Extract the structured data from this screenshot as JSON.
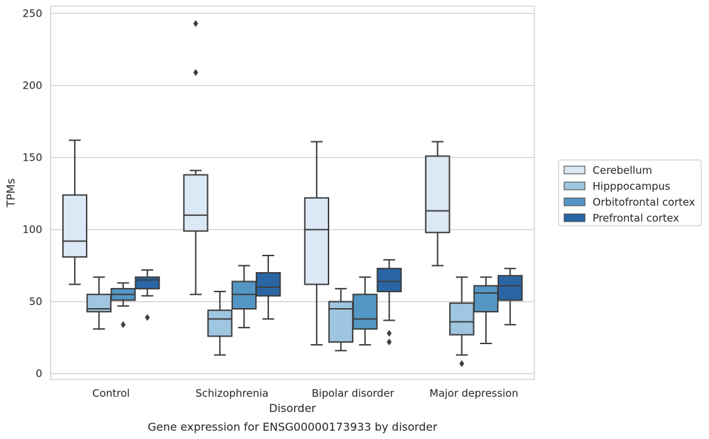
{
  "caption": "Gene expression for ENSG00000173933 by disorder",
  "chart_data": {
    "type": "box",
    "title": "",
    "xlabel": "Disorder",
    "ylabel": "TPMs",
    "ylim": [
      -4,
      255
    ],
    "yticks": [
      0,
      50,
      100,
      150,
      200,
      250
    ],
    "grid": "horizontal",
    "legend_position": "right",
    "categories": [
      "Control",
      "Schizophrenia",
      "Bipolar disorder",
      "Major depression"
    ],
    "series": [
      {
        "name": "Cerebellum",
        "color": "#dbe8f5",
        "boxes": [
          {
            "whisker_low": 62,
            "q1": 81,
            "median": 92,
            "q3": 124,
            "whisker_high": 162,
            "outliers": []
          },
          {
            "whisker_low": 55,
            "q1": 99,
            "median": 110,
            "q3": 138,
            "whisker_high": 141,
            "outliers": [
              209,
              243
            ]
          },
          {
            "whisker_low": 20,
            "q1": 62,
            "median": 100,
            "q3": 122,
            "whisker_high": 161,
            "outliers": []
          },
          {
            "whisker_low": 75,
            "q1": 98,
            "median": 113,
            "q3": 151,
            "whisker_high": 161,
            "outliers": []
          }
        ]
      },
      {
        "name": "Hipppocampus",
        "color": "#9fc6e1",
        "boxes": [
          {
            "whisker_low": 31,
            "q1": 43,
            "median": 45,
            "q3": 55,
            "whisker_high": 67,
            "outliers": []
          },
          {
            "whisker_low": 13,
            "q1": 26,
            "median": 38,
            "q3": 44,
            "whisker_high": 57,
            "outliers": []
          },
          {
            "whisker_low": 16,
            "q1": 22,
            "median": 45,
            "q3": 50,
            "whisker_high": 59,
            "outliers": []
          },
          {
            "whisker_low": 13,
            "q1": 27,
            "median": 36,
            "q3": 49,
            "whisker_high": 67,
            "outliers": [
              7
            ]
          }
        ]
      },
      {
        "name": "Orbitofrontal cortex",
        "color": "#5497c5",
        "boxes": [
          {
            "whisker_low": 47,
            "q1": 51,
            "median": 55,
            "q3": 59,
            "whisker_high": 63,
            "outliers": [
              34
            ]
          },
          {
            "whisker_low": 32,
            "q1": 45,
            "median": 55,
            "q3": 64,
            "whisker_high": 75,
            "outliers": []
          },
          {
            "whisker_low": 20,
            "q1": 31,
            "median": 38,
            "q3": 55,
            "whisker_high": 67,
            "outliers": []
          },
          {
            "whisker_low": 21,
            "q1": 43,
            "median": 56,
            "q3": 61,
            "whisker_high": 67,
            "outliers": []
          }
        ]
      },
      {
        "name": "Prefrontal cortex",
        "color": "#2a66a6",
        "boxes": [
          {
            "whisker_low": 54,
            "q1": 59,
            "median": 65,
            "q3": 67,
            "whisker_high": 72,
            "outliers": [
              39
            ]
          },
          {
            "whisker_low": 38,
            "q1": 54,
            "median": 60,
            "q3": 70,
            "whisker_high": 82,
            "outliers": []
          },
          {
            "whisker_low": 37,
            "q1": 57,
            "median": 64,
            "q3": 73,
            "whisker_high": 79,
            "outliers": [
              22,
              28
            ]
          },
          {
            "whisker_low": 34,
            "q1": 51,
            "median": 61,
            "q3": 68,
            "whisker_high": 73,
            "outliers": []
          }
        ]
      }
    ]
  }
}
